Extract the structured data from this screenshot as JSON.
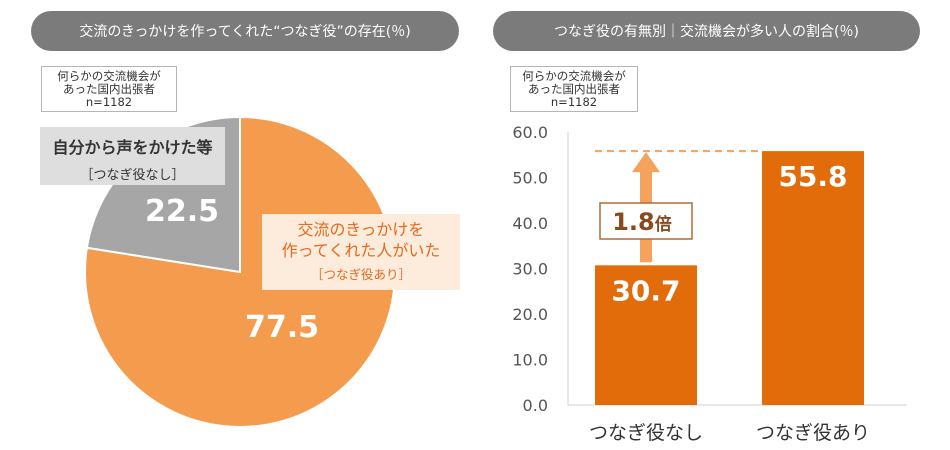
{
  "left_panel": {
    "title": "交流のきっかけを作ってくれた“つなぎ役”の存在(％)",
    "sample": [
      "何らかの交流機会が",
      "あった国内出張者",
      "n=1182"
    ]
  },
  "right_panel": {
    "title": "つなぎ役の有無別｜交流機会が多い人の割合(％)",
    "sample": [
      "何らかの交流機会が",
      "あった国内出張者",
      "n=1182"
    ]
  },
  "chart_data": [
    {
      "type": "pie",
      "title": "交流のきっかけを作ってくれた“つなぎ役”の存在(％)",
      "slices": [
        {
          "label_lines": [
            "交流のきっかけを",
            "作ってくれた人がいた",
            "［つなぎ役あり］"
          ],
          "value": 77.5,
          "value_label": "77.5",
          "color": "#f49b4d"
        },
        {
          "label_lines": [
            "自分から声をかけた等",
            "［つなぎ役なし］"
          ],
          "value": 22.5,
          "value_label": "22.5",
          "color": "#a6a6a6"
        }
      ]
    },
    {
      "type": "bar",
      "title": "つなぎ役の有無別｜交流機会が多い人の割合(％)",
      "categories": [
        "つなぎ役なし",
        "つなぎ役あり"
      ],
      "values": [
        30.7,
        55.8
      ],
      "value_labels": [
        "30.7",
        "55.8"
      ],
      "yticks": [
        "0.0",
        "10.0",
        "20.0",
        "30.0",
        "40.0",
        "50.0",
        "60.0"
      ],
      "ylim": [
        0,
        60
      ],
      "color": "#e36c0a",
      "annotation": {
        "number": "1.8",
        "unit": "倍"
      }
    }
  ],
  "colors": {
    "pill": "#7b7b7b",
    "orange": "#e36c0a",
    "pie_orange": "#f49b4d",
    "pie_grey": "#a6a6a6"
  }
}
